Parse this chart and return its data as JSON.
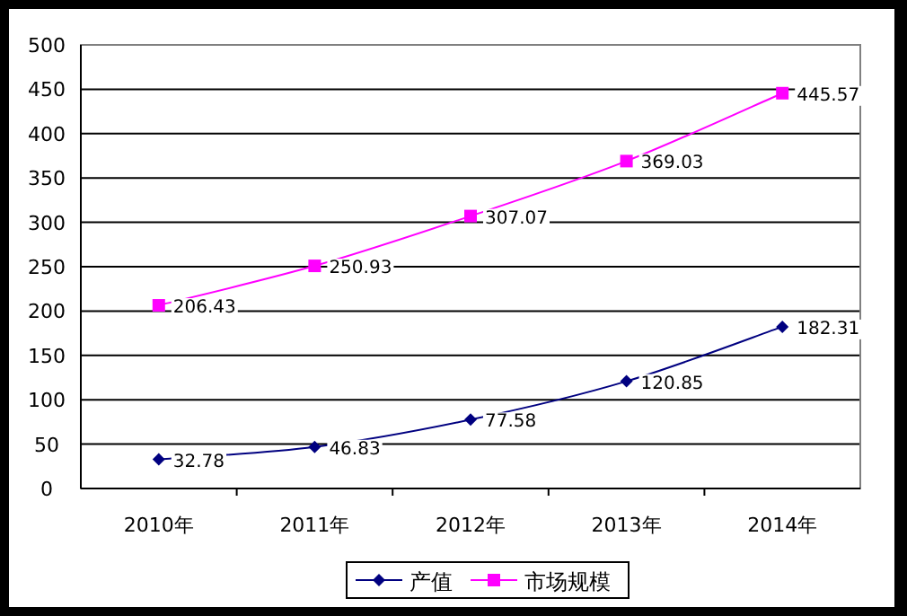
{
  "chart_data": {
    "type": "line",
    "categories": [
      "2010年",
      "2011年",
      "2012年",
      "2013年",
      "2014年"
    ],
    "series": [
      {
        "name": "产值",
        "color": "#000080",
        "marker": "diamond",
        "values": [
          32.78,
          46.83,
          77.58,
          120.85,
          182.31
        ]
      },
      {
        "name": "市场规模",
        "color": "#ff00ff",
        "marker": "square",
        "values": [
          206.43,
          250.93,
          307.07,
          369.03,
          445.57
        ]
      }
    ],
    "ylim": [
      0,
      500
    ],
    "yticks": [
      0,
      50,
      100,
      150,
      200,
      250,
      300,
      350,
      400,
      450,
      500
    ],
    "grid": "y",
    "legend": "bottom",
    "data_labels": true
  }
}
